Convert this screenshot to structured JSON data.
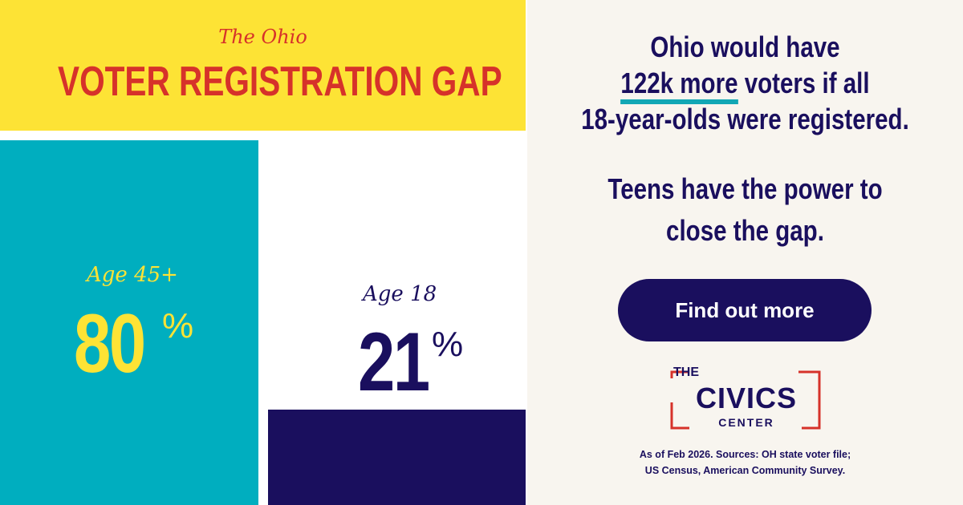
{
  "header": {
    "kicker": "The Ohio",
    "title": "VOTER REGISTRATION GAP"
  },
  "bars": [
    {
      "label": "Age 45+",
      "value": 80,
      "color": "#00aebf"
    },
    {
      "label": "Age 18",
      "value": 21,
      "color": "#1a0f5e"
    }
  ],
  "unit": "%",
  "message": {
    "line1": "Ohio would have",
    "highlight": "122k more",
    "line2_rest": "voters if all",
    "line3": "18-year-olds were registered.",
    "para2_line1": "Teens have the power to",
    "para2_line2": "close the gap."
  },
  "button": "Find out more",
  "logo": {
    "top": "THE",
    "main": "CIVICS",
    "bottom": "CENTER"
  },
  "source": {
    "line1": "As of Feb 2026. Sources: OH state voter file;",
    "line2": "US Census, American Community Survey."
  }
}
